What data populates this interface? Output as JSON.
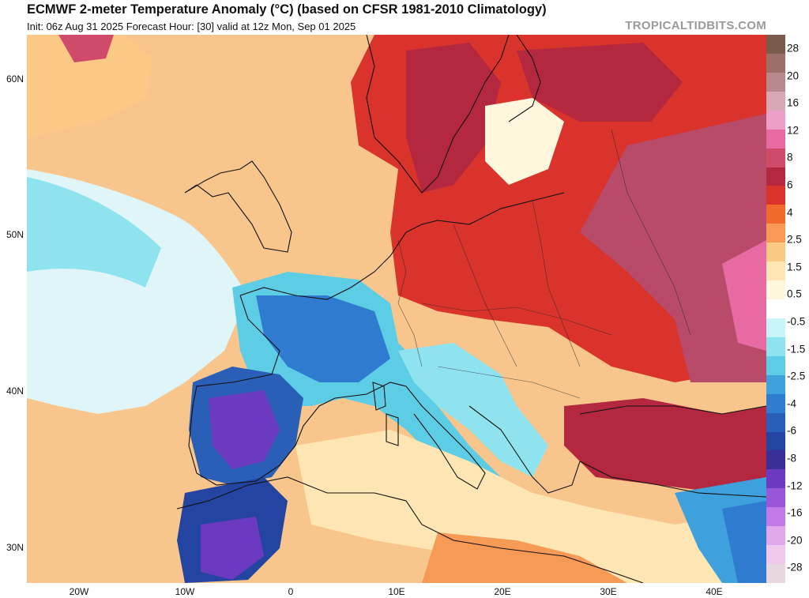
{
  "header": {
    "title": "ECMWF 2-meter Temperature Anomaly (°C) (based on CFSR 1981-2010 Climatology)",
    "subtitle": "Init: 06z Aug 31 2025   Forecast Hour: [30]   valid at 12z Mon, Sep 01 2025",
    "site": "TROPICALTIDBITS.COM"
  },
  "map": {
    "lat_labels": [
      "60N",
      "50N",
      "40N",
      "30N"
    ],
    "lon_labels": [
      "20W",
      "10W",
      "0",
      "10E",
      "20E",
      "30E",
      "40E"
    ]
  },
  "colorbar": {
    "labels": [
      "28",
      "20",
      "16",
      "12",
      "8",
      "6",
      "4",
      "2.5",
      "1.5",
      "0.5",
      "-0.5",
      "-1.5",
      "-2.5",
      "-4",
      "-6",
      "-8",
      "-12",
      "-16",
      "-20",
      "-28"
    ],
    "colors": [
      "#7a5a4a",
      "#9c7068",
      "#b88a8e",
      "#d8a8b4",
      "#ec9ec6",
      "#e76aa2",
      "#d04b6a",
      "#b3283f",
      "#d9332c",
      "#ef6a2c",
      "#f79a56",
      "#fbc985",
      "#fde6b3",
      "#fff6de",
      "#ffffff",
      "#c8f4f8",
      "#8fe3ef",
      "#5dcde6",
      "#3ea0dc",
      "#2f7bd0",
      "#2a5fb8",
      "#2344a0",
      "#3a2f98",
      "#6c3ac0",
      "#9a55d8",
      "#c27ae6",
      "#e2a8ee",
      "#f1c8ee",
      "#e8d6e0"
    ]
  }
}
